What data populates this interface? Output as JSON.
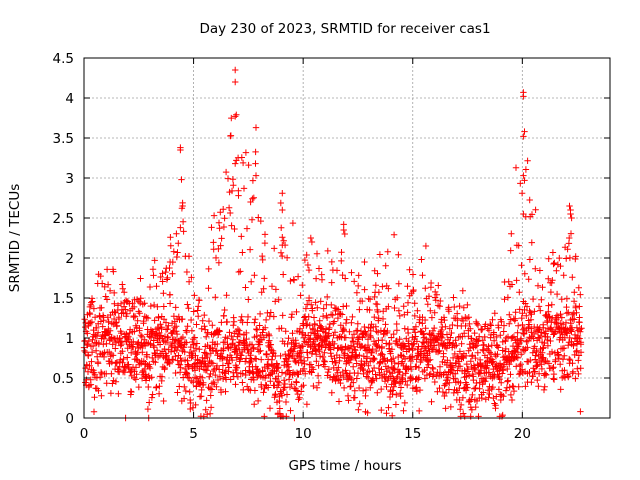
{
  "colors": {
    "series": "#ff0000",
    "grid": "#a0a0a0",
    "axis": "#000000"
  },
  "chart_data": {
    "type": "scatter",
    "title": "Day 230 of 2023, SRMTID for receiver cas1",
    "xlabel": "GPS time / hours",
    "ylabel": "SRMTID / TECUs",
    "xlim": [
      0,
      24
    ],
    "ylim": [
      0,
      4.5
    ],
    "xticks": [
      0,
      5,
      10,
      15,
      20
    ],
    "xtick_labels": [
      "0",
      "5",
      "10",
      "15",
      "20"
    ],
    "yticks": [
      0,
      0.5,
      1,
      1.5,
      2,
      2.5,
      3,
      3.5,
      4,
      4.5
    ],
    "ytick_labels": [
      "0",
      "0.5",
      "1",
      "1.5",
      "2",
      "2.5",
      "3",
      "3.5",
      "4",
      "4.5"
    ],
    "grid": true,
    "marker": "+",
    "series": [
      {
        "name": "cas1",
        "x_range": [
          0,
          22.7
        ],
        "approx_point_count": 2600,
        "baseline_by_hour": [
          [
            0,
            0.75
          ],
          [
            1,
            0.9
          ],
          [
            2,
            0.85
          ],
          [
            3,
            0.8
          ],
          [
            4,
            1.0
          ],
          [
            5,
            0.55
          ],
          [
            6,
            0.65
          ],
          [
            7,
            0.85
          ],
          [
            8,
            0.7
          ],
          [
            9,
            0.55
          ],
          [
            10,
            0.85
          ],
          [
            11,
            0.95
          ],
          [
            12,
            0.75
          ],
          [
            13,
            0.7
          ],
          [
            14,
            0.75
          ],
          [
            15,
            0.75
          ],
          [
            16,
            0.8
          ],
          [
            17,
            0.6
          ],
          [
            18,
            0.6
          ],
          [
            19,
            0.6
          ],
          [
            20,
            0.9
          ],
          [
            21,
            0.9
          ],
          [
            22,
            1.0
          ],
          [
            22.7,
            1.0
          ]
        ],
        "envelope_by_hour": [
          [
            0,
            1.4
          ],
          [
            1,
            2.0
          ],
          [
            2,
            1.6
          ],
          [
            3,
            1.9
          ],
          [
            4,
            2.3
          ],
          [
            4.4,
            3.3
          ],
          [
            5,
            1.6
          ],
          [
            6,
            2.6
          ],
          [
            7,
            4.3
          ],
          [
            7.8,
            3.6
          ],
          [
            8.5,
            1.8
          ],
          [
            9,
            2.8
          ],
          [
            10,
            2.2
          ],
          [
            11,
            2.1
          ],
          [
            11.8,
            2.4
          ],
          [
            12.5,
            1.9
          ],
          [
            13,
            1.8
          ],
          [
            14,
            2.3
          ],
          [
            15,
            1.8
          ],
          [
            15.5,
            2.1
          ],
          [
            16.5,
            1.5
          ],
          [
            17.3,
            1.6
          ],
          [
            18,
            1.2
          ],
          [
            19,
            1.5
          ],
          [
            20,
            4.0
          ],
          [
            21,
            1.9
          ],
          [
            22.2,
            2.6
          ],
          [
            22.7,
            2.1
          ]
        ],
        "notable_points": [
          [
            4.4,
            3.38
          ],
          [
            4.4,
            3.35
          ],
          [
            4.45,
            2.98
          ],
          [
            4.5,
            2.65
          ],
          [
            4.4,
            2.38
          ],
          [
            6.9,
            4.35
          ],
          [
            6.9,
            4.2
          ],
          [
            6.95,
            3.79
          ],
          [
            6.9,
            3.77
          ],
          [
            6.95,
            3.22
          ],
          [
            6.9,
            3.18
          ],
          [
            7.85,
            3.63
          ],
          [
            7.85,
            3.03
          ],
          [
            7.3,
            2.87
          ],
          [
            7.05,
            2.78
          ],
          [
            7.6,
            2.7
          ],
          [
            6.35,
            2.61
          ],
          [
            9.05,
            2.81
          ],
          [
            9.05,
            2.6
          ],
          [
            9.05,
            2.26
          ],
          [
            20.05,
            4.07
          ],
          [
            20.05,
            4.02
          ],
          [
            20.1,
            3.58
          ],
          [
            20.05,
            3.52
          ],
          [
            20.05,
            3.03
          ],
          [
            20.1,
            2.97
          ],
          [
            20.05,
            2.55
          ],
          [
            22.15,
            2.65
          ],
          [
            22.2,
            2.6
          ],
          [
            22.2,
            2.55
          ],
          [
            22.25,
            2.5
          ],
          [
            11.85,
            2.42
          ],
          [
            11.85,
            2.35
          ],
          [
            11.9,
            2.3
          ],
          [
            14.15,
            2.29
          ],
          [
            12.8,
            1.95
          ],
          [
            15.6,
            2.15
          ],
          [
            10.35,
            2.25
          ],
          [
            10.4,
            2.2
          ],
          [
            1.9,
            0.0
          ],
          [
            2.95,
            0.0
          ],
          [
            9.6,
            0.0
          ],
          [
            22.65,
            0.08
          ],
          [
            13.8,
            0.06
          ],
          [
            16.5,
            0.12
          ]
        ]
      }
    ]
  }
}
